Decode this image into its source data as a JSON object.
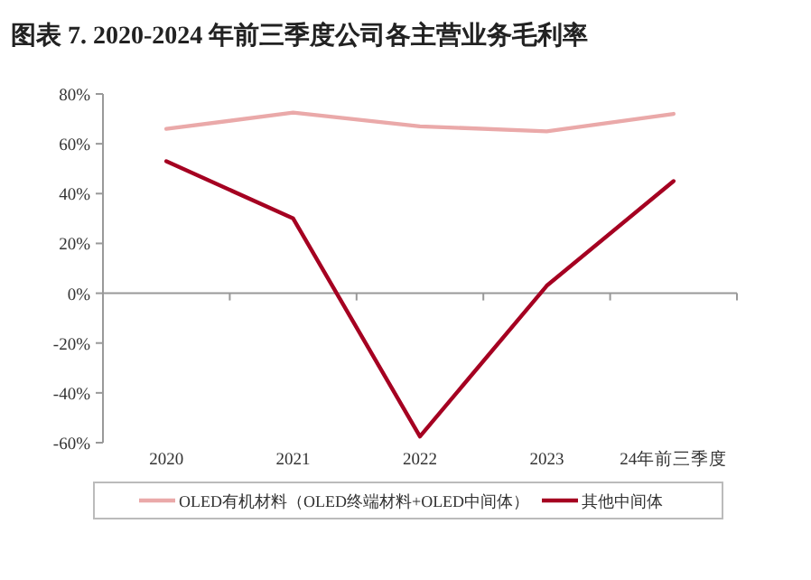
{
  "chart_data": {
    "type": "line",
    "title": "图表 7. 2020-2024 年前三季度公司各主营业务毛利率",
    "categories": [
      "2020",
      "2021",
      "2022",
      "2023",
      "24年前三季度"
    ],
    "series": [
      {
        "name": "OLED有机材料（OLED终端材料+OLED中间体）",
        "color": "#eaa9a9",
        "values": [
          66,
          72.5,
          67,
          65,
          72
        ]
      },
      {
        "name": "其他中间体",
        "color": "#a50021",
        "values": [
          53,
          30,
          -57.5,
          3,
          45
        ]
      }
    ],
    "ylim": [
      -60,
      80
    ],
    "yticks": [
      {
        "value": -60,
        "label": "-60%"
      },
      {
        "value": -40,
        "label": "-40%"
      },
      {
        "value": -20,
        "label": "-20%"
      },
      {
        "value": 0,
        "label": "0%"
      },
      {
        "value": 20,
        "label": "20%"
      },
      {
        "value": 40,
        "label": "40%"
      },
      {
        "value": 60,
        "label": "60%"
      },
      {
        "value": 80,
        "label": "80%"
      }
    ],
    "legend": "bottom",
    "marker": "none",
    "line_style": "solid"
  }
}
